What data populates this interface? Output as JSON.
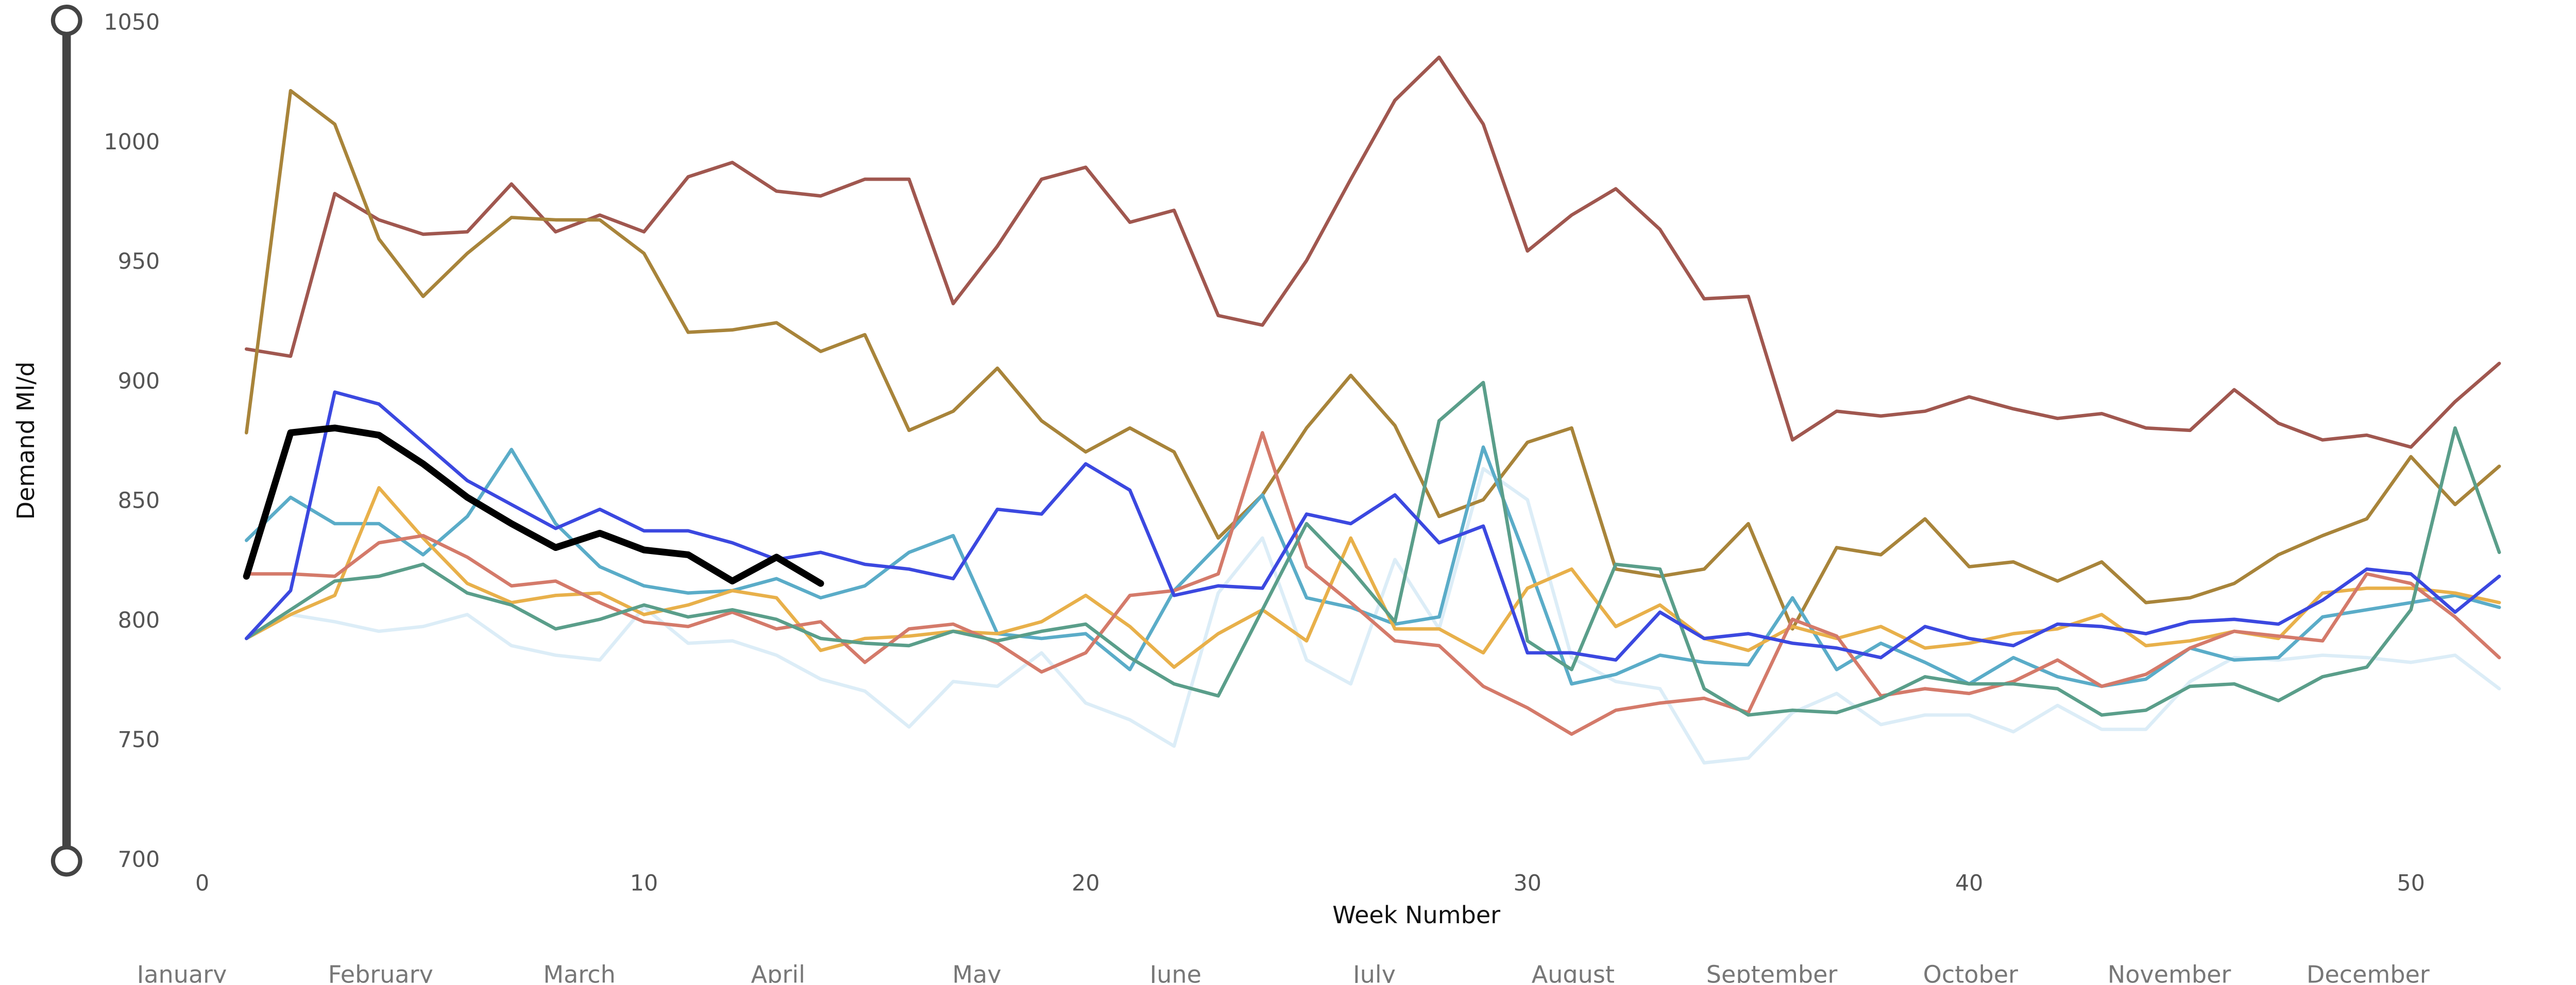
{
  "chart_data": {
    "type": "line",
    "x_label": "Week Number",
    "y_label": "Demand Ml/d",
    "xlim": [
      0,
      53
    ],
    "xticks": [
      0,
      10,
      20,
      30,
      40,
      50
    ],
    "ylim": [
      700,
      1050
    ],
    "yticks": [
      700,
      750,
      800,
      850,
      900,
      950,
      1000,
      1050
    ],
    "grid": false,
    "months": [
      "January",
      "February",
      "March",
      "April",
      "May",
      "June",
      "July",
      "August",
      "September",
      "October",
      "November",
      "December"
    ],
    "x": [
      1,
      2,
      3,
      4,
      5,
      6,
      7,
      8,
      9,
      10,
      11,
      12,
      13,
      14,
      15,
      16,
      17,
      18,
      19,
      20,
      21,
      22,
      23,
      24,
      25,
      26,
      27,
      28,
      29,
      30,
      31,
      32,
      33,
      34,
      35,
      36,
      37,
      38,
      39,
      40,
      41,
      42,
      43,
      44,
      45,
      46,
      47,
      48,
      49,
      50,
      51,
      52
    ],
    "series": [
      {
        "color": "#dcedf7",
        "values": [
          793,
          803,
          800,
          796,
          798,
          803,
          790,
          786,
          784,
          806,
          791,
          792,
          786,
          776,
          771,
          756,
          775,
          773,
          787,
          766,
          759,
          748,
          812,
          835,
          784,
          774,
          826,
          797,
          864,
          851,
          785,
          775,
          772,
          741,
          743,
          762,
          770,
          757,
          761,
          761,
          754,
          765,
          755,
          755,
          775,
          785,
          784,
          786,
          785,
          783,
          786,
          772
        ]
      },
      {
        "color": "#a0574f",
        "values": [
          914,
          911,
          979,
          968,
          962,
          963,
          983,
          963,
          970,
          963,
          986,
          992,
          980,
          978,
          985,
          985,
          933,
          957,
          985,
          990,
          967,
          972,
          928,
          924,
          951,
          985,
          1018,
          1036,
          1008,
          955,
          970,
          981,
          964,
          935,
          936,
          876,
          888,
          886,
          888,
          894,
          889,
          885,
          887,
          881,
          880,
          897,
          883,
          876,
          878,
          873,
          892,
          908
        ]
      },
      {
        "color": "#a8843a",
        "values": [
          879,
          1022,
          1008,
          960,
          936,
          954,
          969,
          968,
          968,
          954,
          921,
          922,
          925,
          913,
          920,
          880,
          888,
          906,
          884,
          871,
          881,
          871,
          835,
          853,
          881,
          903,
          882,
          844,
          851,
          875,
          881,
          822,
          819,
          822,
          841,
          797,
          831,
          828,
          843,
          823,
          825,
          817,
          825,
          808,
          810,
          816,
          828,
          836,
          843,
          869,
          849,
          865
        ]
      },
      {
        "color": "#5aacc8",
        "values": [
          834,
          852,
          841,
          841,
          828,
          844,
          872,
          841,
          823,
          815,
          812,
          813,
          818,
          810,
          815,
          829,
          836,
          795,
          793,
          795,
          780,
          813,
          832,
          853,
          810,
          806,
          799,
          802,
          873,
          825,
          774,
          778,
          786,
          783,
          782,
          810,
          780,
          791,
          783,
          774,
          785,
          777,
          773,
          776,
          789,
          784,
          785,
          802,
          805,
          808,
          811,
          806
        ]
      },
      {
        "color": "#e8b04a",
        "values": [
          793,
          803,
          811,
          856,
          835,
          816,
          808,
          811,
          812,
          803,
          807,
          813,
          810,
          788,
          793,
          794,
          796,
          795,
          800,
          811,
          798,
          781,
          795,
          805,
          792,
          835,
          797,
          797,
          787,
          814,
          822,
          798,
          807,
          793,
          788,
          798,
          793,
          798,
          789,
          791,
          795,
          797,
          803,
          790,
          792,
          796,
          793,
          812,
          814,
          814,
          812,
          808
        ]
      },
      {
        "color": "#d47a6a",
        "values": [
          820,
          820,
          819,
          833,
          836,
          827,
          815,
          817,
          808,
          800,
          798,
          804,
          797,
          800,
          783,
          797,
          799,
          791,
          779,
          787,
          811,
          813,
          820,
          879,
          823,
          808,
          792,
          790,
          773,
          764,
          753,
          763,
          766,
          768,
          762,
          801,
          794,
          769,
          772,
          770,
          775,
          784,
          773,
          778,
          789,
          796,
          794,
          792,
          820,
          816,
          802,
          785
        ]
      },
      {
        "color": "#5a9e8a",
        "values": [
          793,
          805,
          817,
          819,
          824,
          812,
          807,
          797,
          801,
          807,
          802,
          805,
          801,
          793,
          791,
          790,
          796,
          792,
          796,
          799,
          785,
          774,
          769,
          805,
          841,
          822,
          800,
          884,
          900,
          792,
          780,
          824,
          822,
          772,
          761,
          763,
          762,
          768,
          777,
          774,
          774,
          772,
          761,
          763,
          773,
          774,
          767,
          777,
          781,
          805,
          881,
          829
        ]
      },
      {
        "color": "#3b48e0",
        "values": [
          793,
          813,
          896,
          891,
          875,
          859,
          849,
          839,
          847,
          838,
          838,
          833,
          826,
          829,
          824,
          822,
          818,
          847,
          845,
          866,
          855,
          811,
          815,
          814,
          845,
          841,
          853,
          833,
          840,
          787,
          787,
          784,
          804,
          793,
          795,
          791,
          789,
          785,
          798,
          793,
          790,
          799,
          798,
          795,
          800,
          801,
          799,
          809,
          822,
          820,
          804,
          819
        ]
      },
      {
        "color": "#000000",
        "values": [
          819,
          879,
          881,
          878,
          866,
          852,
          841,
          831,
          837,
          830,
          828,
          817,
          827,
          816,
          null,
          null,
          null,
          null,
          null,
          null,
          null,
          null,
          null,
          null,
          null,
          null,
          null,
          null,
          null,
          null,
          null,
          null,
          null,
          null,
          null,
          null,
          null,
          null,
          null,
          null,
          null,
          null,
          null,
          null,
          null,
          null,
          null,
          null,
          null,
          null,
          null,
          null
        ]
      }
    ]
  }
}
